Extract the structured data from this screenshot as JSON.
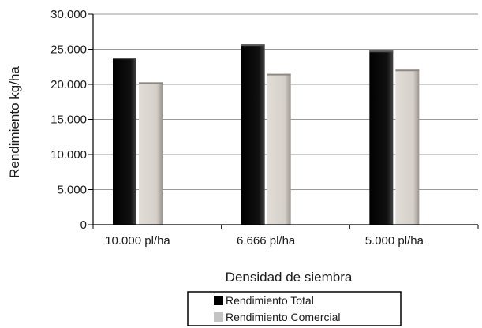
{
  "chart_data": {
    "type": "bar",
    "categories": [
      "10.000 pl/ha",
      "6.666 pl/ha",
      "5.000 pl/ha"
    ],
    "series": [
      {
        "name": "Rendimiento Total",
        "values": [
          23800,
          25700,
          24800
        ],
        "color": "#000000"
      },
      {
        "name": "Rendimiento Comercial",
        "values": [
          20300,
          21500,
          22100
        ],
        "color": "#d8d2cc"
      }
    ],
    "legend_swatches": [
      "#000000",
      "#c4c4c4"
    ],
    "xlabel": "Densidad de siembra",
    "ylabel": "Rendimiento kg/ha",
    "ylim": [
      0,
      30000
    ],
    "yticks": [
      0,
      5000,
      10000,
      15000,
      20000,
      25000,
      30000
    ],
    "ytick_labels": [
      "0",
      "5.000",
      "10.000",
      "15.000",
      "20.000",
      "25.000",
      "30.000"
    ],
    "grid": true,
    "legend_position": "bottom-center"
  }
}
